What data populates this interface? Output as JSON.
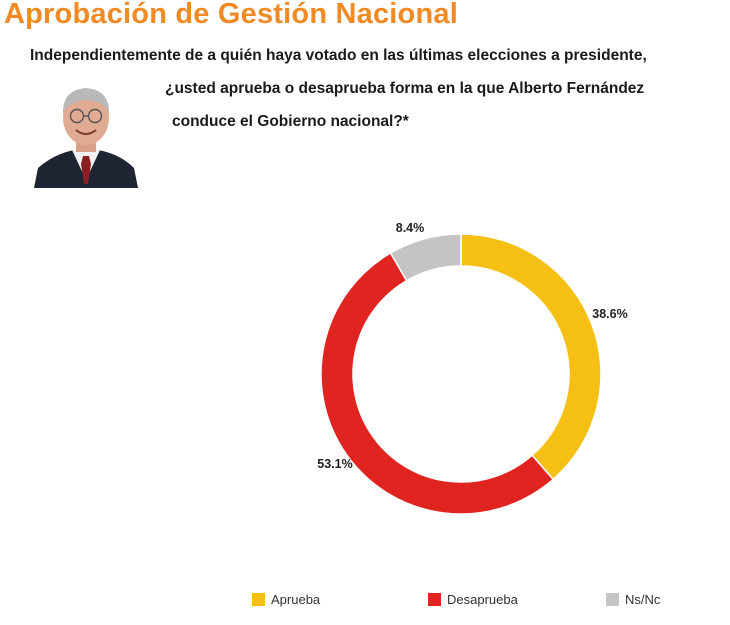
{
  "header": {
    "title": "Aprobación de Gestión Nacional",
    "question_line1": "Independientemente de a quién haya votado en las últimas elecciones a presidente,",
    "question_line2": "¿usted aprueba o desaprueba  forma en la que Alberto Fernández",
    "question_line3": "conduce el Gobierno nacional?*"
  },
  "colors": {
    "title": "#F08A24",
    "aprueba": "#F5C013",
    "desaprueba": "#E02420",
    "nsnc": "#C4C4C4"
  },
  "chart_data": {
    "type": "pie",
    "donut": true,
    "title": "Aprobación de Gestión Nacional",
    "categories": [
      "Aprueba",
      "Desaprueba",
      "Ns/Nc"
    ],
    "values": [
      38.6,
      53.1,
      8.4
    ],
    "labels": [
      "38.6%",
      "53.1%",
      "8.4%"
    ],
    "colors": [
      "#F5C013",
      "#E02420",
      "#C4C4C4"
    ],
    "start": "12 o'clock, clockwise",
    "legend_position": "bottom"
  }
}
